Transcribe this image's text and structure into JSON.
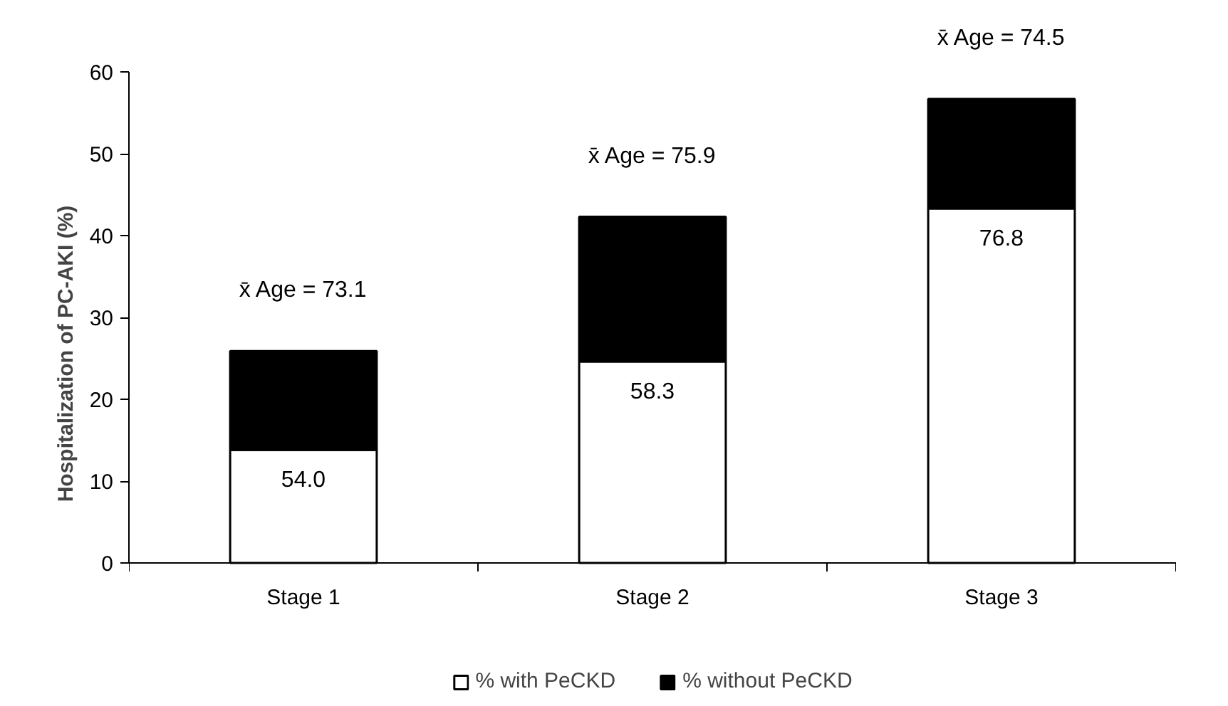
{
  "chart_data": {
    "type": "bar",
    "stacked": true,
    "ylabel": "Hospitalization of PC-AKI (%)",
    "categories": [
      "Stage 1",
      "Stage 2",
      "Stage 3"
    ],
    "series": [
      {
        "name": "% with PeCKD",
        "color": "#ffffff",
        "values": [
          13.8,
          24.6,
          43.3
        ]
      },
      {
        "name": "% without PeCKD",
        "color": "#000000",
        "values": [
          12.1,
          17.7,
          13.4
        ]
      }
    ],
    "annotations": [
      "54.0",
      "58.3",
      "76.8",
      "x̄ Age = 73.1",
      "x̄ Age = 75.9",
      "x̄ Age = 74.5"
    ],
    "ylim": [
      0,
      60
    ],
    "yticks": [
      0,
      10,
      20,
      30,
      40,
      50,
      60
    ],
    "grid": false,
    "legend": "bottom"
  }
}
